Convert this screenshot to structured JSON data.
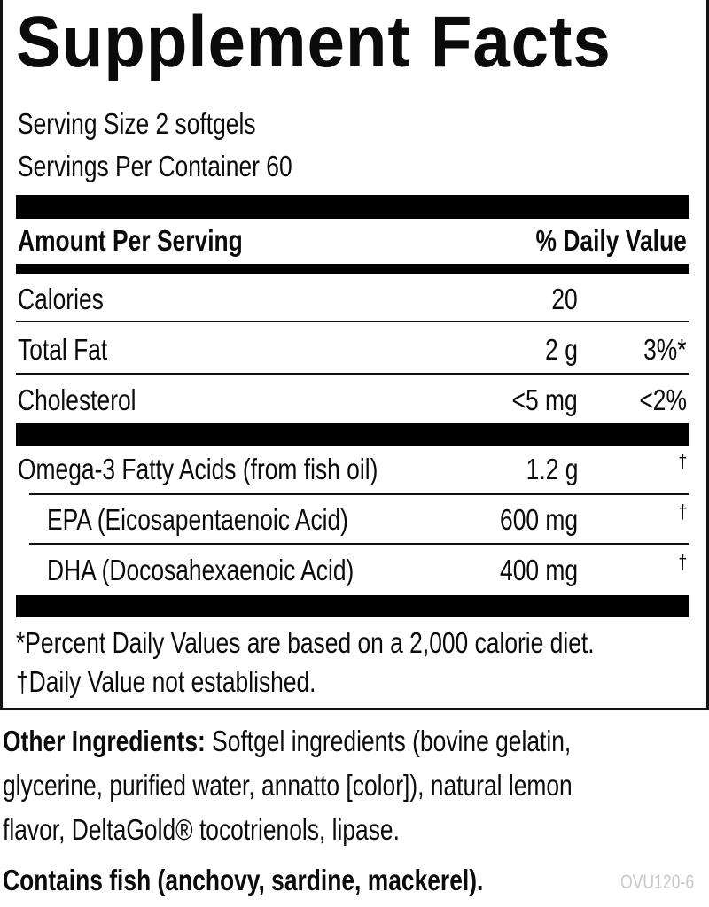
{
  "title": "Supplement Facts",
  "serving_size": "Serving Size 2 softgels",
  "servings_per_container": "Servings Per Container 60",
  "header": {
    "amount": "Amount Per Serving",
    "dv": "% Daily Value"
  },
  "rows": [
    {
      "name": "Calories",
      "amount": "20",
      "dv": ""
    },
    {
      "name": "Total Fat",
      "amount": "2 g",
      "dv": "3%*"
    },
    {
      "name": "Cholesterol",
      "amount": "<5 mg",
      "dv": "<2%"
    },
    {
      "name": "Omega-3 Fatty Acids (from fish oil)",
      "amount": "1.2 g",
      "dv": "†"
    },
    {
      "name": "EPA (Eicosapentaenoic Acid)",
      "amount": "600 mg",
      "dv": "†"
    },
    {
      "name": "DHA (Docosahexaenoic Acid)",
      "amount": "400 mg",
      "dv": "†"
    }
  ],
  "footnotes": [
    "*Percent Daily Values are based on a 2,000 calorie diet.",
    "†Daily Value not established."
  ],
  "other_ingredients": {
    "label": "Other Ingredients:",
    "line1": "Softgel ingredients (bovine gelatin,",
    "line2": "glycerine, purified water, annatto [color]), natural lemon",
    "line3": "flavor, DeltaGold® tocotrienols, lipase."
  },
  "allergen": "Contains fish (anchovy, sardine, mackerel).",
  "code": "OVU120-6"
}
